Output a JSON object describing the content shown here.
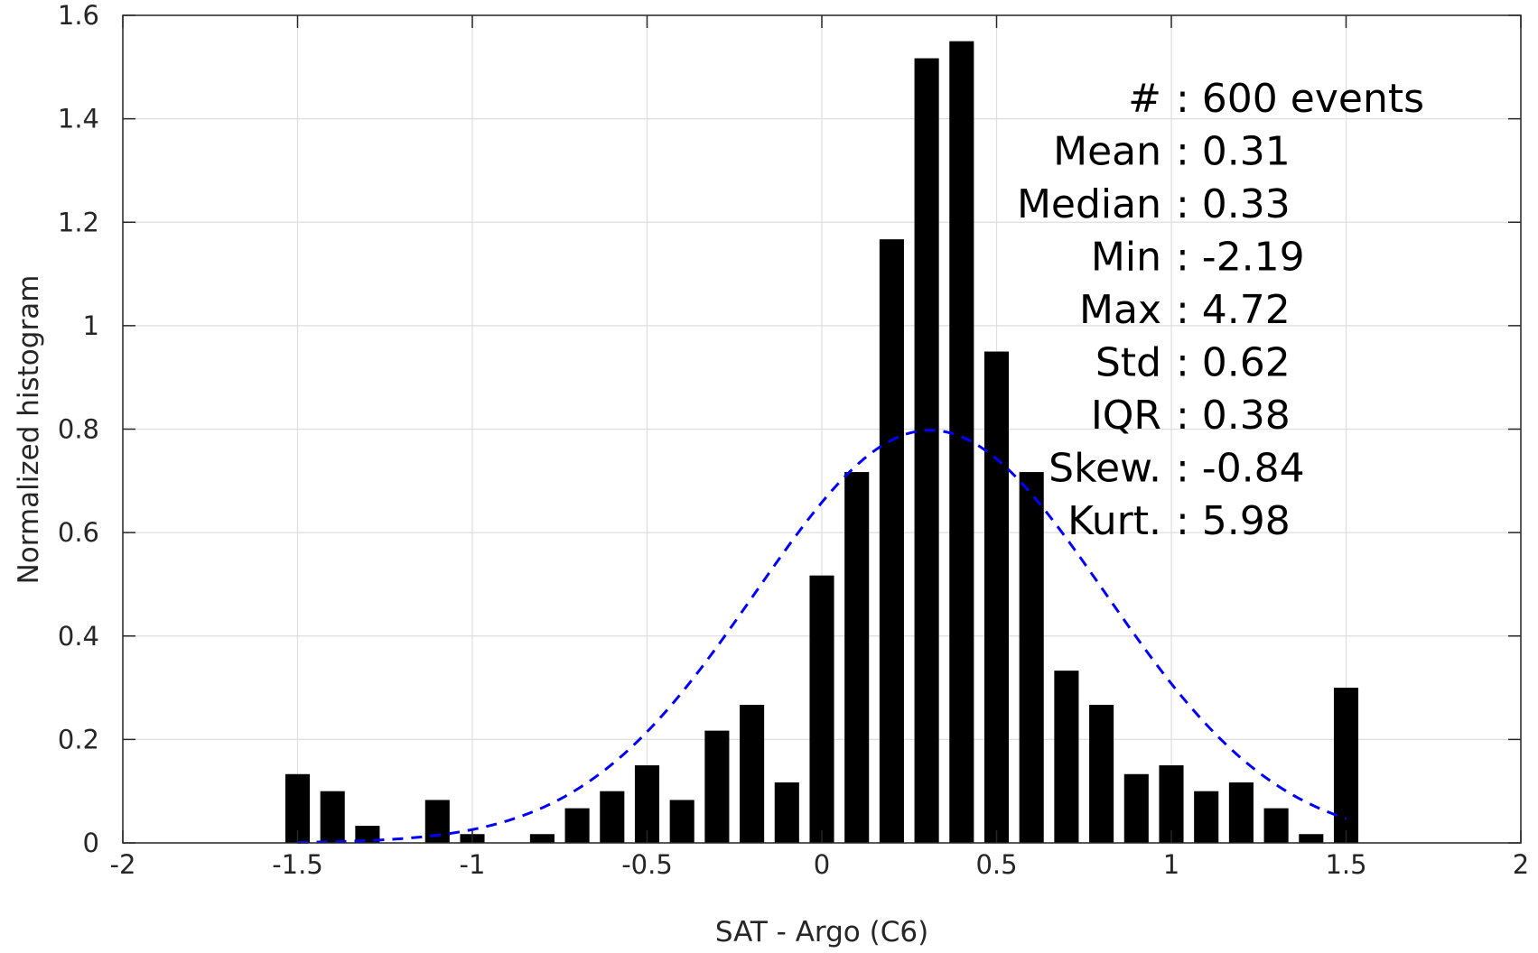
{
  "chart_data": {
    "type": "bar",
    "xlabel": "SAT - Argo (C6)",
    "ylabel": "Normalized histogram",
    "xlim": [
      -2,
      2
    ],
    "ylim": [
      0,
      1.6
    ],
    "xticks": [
      -2,
      -1.5,
      -1,
      -0.5,
      0,
      0.5,
      1,
      1.5,
      2
    ],
    "xtick_labels": [
      "-2",
      "-1.5",
      "-1",
      "-0.5",
      "0",
      "0.5",
      "1",
      "1.5",
      "2"
    ],
    "yticks": [
      0,
      0.2,
      0.4,
      0.6,
      0.8,
      1,
      1.2,
      1.4,
      1.6
    ],
    "ytick_labels": [
      "0",
      "0.2",
      "0.4",
      "0.6",
      "0.8",
      "1",
      "1.2",
      "1.4",
      "1.6"
    ],
    "grid": true,
    "bar_color": "#000000",
    "bars": {
      "x": [
        -1.5,
        -1.4,
        -1.3,
        -1.2,
        -1.1,
        -1.0,
        -0.9,
        -0.8,
        -0.7,
        -0.6,
        -0.5,
        -0.4,
        -0.3,
        -0.2,
        -0.1,
        0.0,
        0.1,
        0.2,
        0.3,
        0.4,
        0.5,
        0.6,
        0.7,
        0.8,
        0.9,
        1.0,
        1.1,
        1.2,
        1.3,
        1.4,
        1.5
      ],
      "values": [
        0.133,
        0.1,
        0.033,
        0.0,
        0.083,
        0.017,
        0.0,
        0.017,
        0.067,
        0.1,
        0.15,
        0.083,
        0.217,
        0.267,
        0.117,
        0.517,
        0.717,
        1.167,
        1.517,
        1.55,
        0.95,
        0.717,
        0.333,
        0.267,
        0.133,
        0.15,
        0.1,
        0.117,
        0.067,
        0.017,
        0.3
      ]
    },
    "fit_curve": {
      "type": "normal",
      "mean": 0.31,
      "std": 0.5,
      "x_range": [
        -1.5,
        1.5
      ],
      "color": "#0000ff",
      "style": "dashed"
    },
    "stats_box": {
      "placement": "top-right",
      "lines": [
        {
          "label": "#",
          "value": ": 600 events"
        },
        {
          "label": "Mean",
          "value": ": 0.31"
        },
        {
          "label": "Median",
          "value": ": 0.33"
        },
        {
          "label": "Min",
          "value": ": -2.19"
        },
        {
          "label": "Max",
          "value": ": 4.72"
        },
        {
          "label": "Std",
          "value": ": 0.62"
        },
        {
          "label": "IQR",
          "value": ": 0.38"
        },
        {
          "label": "Skew.",
          "value": ": -0.84"
        },
        {
          "label": "Kurt.",
          "value": ": 5.98"
        }
      ]
    }
  }
}
